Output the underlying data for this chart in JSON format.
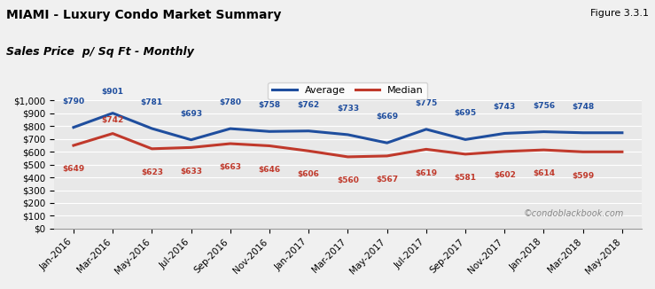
{
  "title_line1": "MIAMI - Luxury Condo Market Summary",
  "title_line2": "Sales Price  p/ Sq Ft - Monthly",
  "figure_label": "Figure 3.3.1",
  "watermark": "©condoblackbook.com",
  "x_labels": [
    "Jan-2016",
    "Mar-2016",
    "May-2016",
    "Jul-2016",
    "Sep-2016",
    "Nov-2016",
    "Jan-2017",
    "Mar-2017",
    "May-2017",
    "Jul-2017",
    "Sep-2017",
    "Nov-2017",
    "Jan-2018",
    "Mar-2018",
    "May-2018"
  ],
  "average_values": [
    790,
    901,
    781,
    693,
    780,
    758,
    762,
    733,
    669,
    775,
    695,
    743,
    756,
    748,
    748
  ],
  "median_values": [
    649,
    742,
    623,
    633,
    663,
    646,
    606,
    560,
    567,
    619,
    581,
    602,
    614,
    599,
    599
  ],
  "avg_labels": [
    "$790",
    "$901",
    "$781",
    "$693",
    "$780",
    "$758",
    "$762",
    "$733",
    "$669",
    "$775",
    "$695",
    "$743",
    "$756",
    "$748",
    ""
  ],
  "med_labels": [
    "$649",
    "$742",
    "$623",
    "$633",
    "$663",
    "$646",
    "$606",
    "$560",
    "$567",
    "$619",
    "$581",
    "$602",
    "$614",
    "$599",
    ""
  ],
  "avg_color": "#1f4e9e",
  "med_color": "#c0392b",
  "bg_color": "#e8e8e8",
  "chart_bg": "#e8e8e8",
  "ylim": [
    0,
    1000
  ],
  "yticks": [
    0,
    100,
    200,
    300,
    400,
    500,
    600,
    700,
    800,
    900,
    1000
  ]
}
